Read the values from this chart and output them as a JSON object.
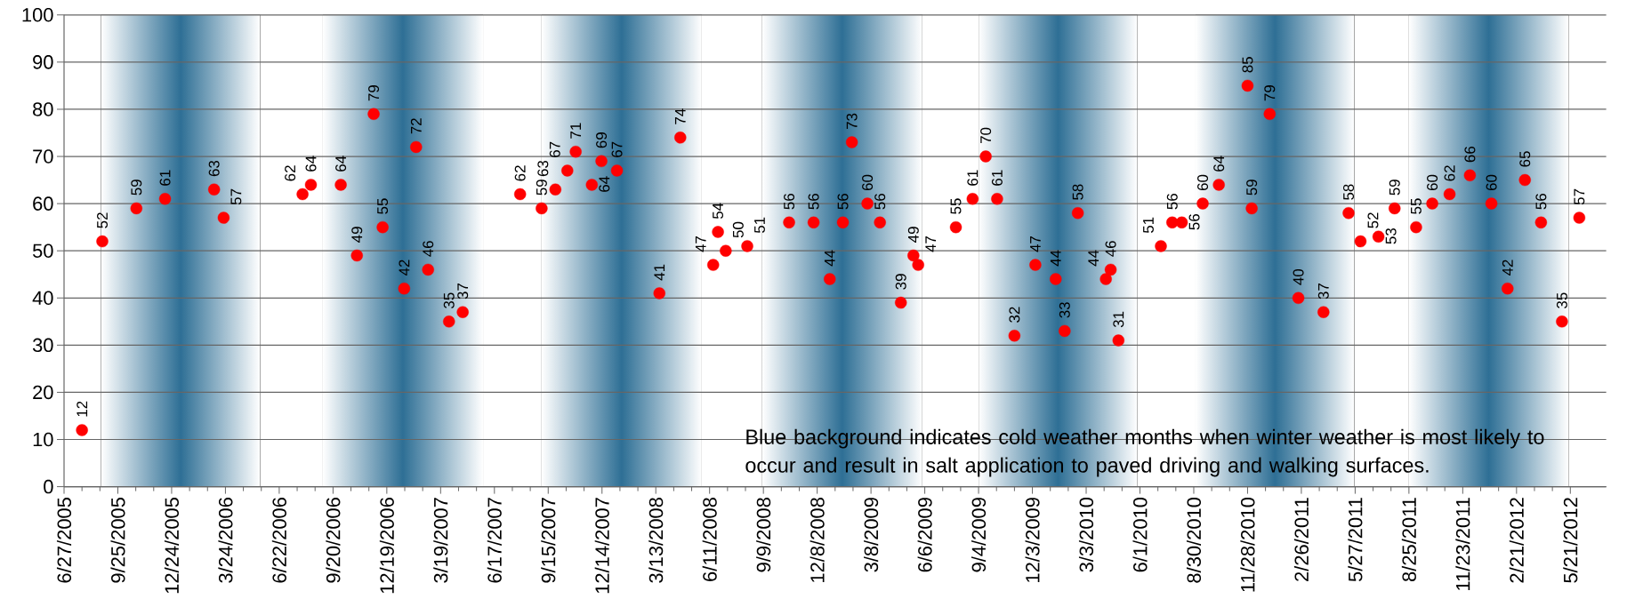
{
  "chart_data": {
    "type": "scatter",
    "x": [
      "2005-07-27",
      "2005-08-30",
      "2005-10-26",
      "2005-12-13",
      "2006-03-05",
      "2006-03-21",
      "2006-07-31",
      "2006-08-14",
      "2006-10-03",
      "2006-10-30",
      "2006-11-27",
      "2006-12-12",
      "2007-01-17",
      "2007-02-06",
      "2007-02-26",
      "2007-04-02",
      "2007-04-25",
      "2007-07-30",
      "2007-09-04",
      "2007-09-27",
      "2007-10-17",
      "2007-10-31",
      "2007-11-27",
      "2007-12-13",
      "2008-01-08",
      "2008-03-19",
      "2008-04-23",
      "2008-06-17",
      "2008-06-25",
      "2008-07-08",
      "2008-08-13",
      "2008-10-22",
      "2008-12-02",
      "2008-12-29",
      "2009-01-20",
      "2009-02-04",
      "2009-03-02",
      "2009-03-23",
      "2009-04-27",
      "2009-05-18",
      "2009-05-26",
      "2009-07-28",
      "2009-08-25",
      "2009-09-16",
      "2009-10-05",
      "2009-11-03",
      "2009-12-08",
      "2010-01-11",
      "2010-01-26",
      "2010-02-17",
      "2010-04-05",
      "2010-04-13",
      "2010-04-26",
      "2010-07-06",
      "2010-07-25",
      "2010-08-10",
      "2010-09-14",
      "2010-10-11",
      "2010-11-28",
      "2010-12-05",
      "2011-01-04",
      "2011-02-21",
      "2011-04-04",
      "2011-05-16",
      "2011-06-05",
      "2011-07-05",
      "2011-08-01",
      "2011-09-06",
      "2011-10-03",
      "2011-11-01",
      "2011-12-05",
      "2012-01-10",
      "2012-02-06",
      "2012-03-06",
      "2012-04-02",
      "2012-05-07",
      "2012-06-05"
    ],
    "values": [
      12,
      52,
      59,
      61,
      63,
      57,
      62,
      64,
      64,
      49,
      79,
      55,
      42,
      72,
      46,
      35,
      37,
      62,
      59,
      63,
      67,
      71,
      64,
      69,
      67,
      41,
      74,
      47,
      54,
      50,
      51,
      56,
      56,
      44,
      56,
      73,
      60,
      56,
      39,
      49,
      47,
      55,
      61,
      70,
      61,
      32,
      47,
      44,
      33,
      58,
      44,
      46,
      31,
      51,
      56,
      56,
      60,
      64,
      85,
      59,
      79,
      40,
      37,
      58,
      52,
      53,
      59,
      55,
      60,
      62,
      66,
      60,
      42,
      65,
      56,
      35,
      57
    ],
    "color": "#ff0000",
    "marker": "circle",
    "data_labels": true,
    "grid": "y",
    "xlim": [
      "2005-06-27",
      "2012-07-20"
    ],
    "xticks": [
      {
        "value": "2005-06-27",
        "label": "6/27/2005"
      },
      {
        "value": "2005-09-25",
        "label": "9/25/2005"
      },
      {
        "value": "2005-12-24",
        "label": "12/24/2005"
      },
      {
        "value": "2006-03-24",
        "label": "3/24/2006"
      },
      {
        "value": "2006-06-22",
        "label": "6/22/2006"
      },
      {
        "value": "2006-09-20",
        "label": "9/20/2006"
      },
      {
        "value": "2006-12-19",
        "label": "12/19/2006"
      },
      {
        "value": "2007-03-19",
        "label": "3/19/2007"
      },
      {
        "value": "2007-06-17",
        "label": "6/17/2007"
      },
      {
        "value": "2007-09-15",
        "label": "9/15/2007"
      },
      {
        "value": "2007-12-14",
        "label": "12/14/2007"
      },
      {
        "value": "2008-03-13",
        "label": "3/13/2008"
      },
      {
        "value": "2008-06-11",
        "label": "6/11/2008"
      },
      {
        "value": "2008-09-09",
        "label": "9/9/2008"
      },
      {
        "value": "2008-12-08",
        "label": "12/8/2008"
      },
      {
        "value": "2009-03-08",
        "label": "3/8/2009"
      },
      {
        "value": "2009-06-06",
        "label": "6/6/2009"
      },
      {
        "value": "2009-09-04",
        "label": "9/4/2009"
      },
      {
        "value": "2009-12-03",
        "label": "12/3/2009"
      },
      {
        "value": "2010-03-03",
        "label": "3/3/2010"
      },
      {
        "value": "2010-06-01",
        "label": "6/1/2010"
      },
      {
        "value": "2010-08-30",
        "label": "8/30/2010"
      },
      {
        "value": "2010-11-28",
        "label": "11/28/2010"
      },
      {
        "value": "2011-02-26",
        "label": "2/26/2011"
      },
      {
        "value": "2011-05-27",
        "label": "5/27/2011"
      },
      {
        "value": "2011-08-25",
        "label": "8/25/2011"
      },
      {
        "value": "2011-11-23",
        "label": "11/23/2011"
      },
      {
        "value": "2012-02-21",
        "label": "2/21/2012"
      },
      {
        "value": "2012-05-21",
        "label": "5/21/2012"
      }
    ],
    "ylim": [
      0,
      100
    ],
    "yticks": [
      0,
      10,
      20,
      30,
      40,
      50,
      60,
      70,
      80,
      90,
      100
    ],
    "bands": [
      {
        "axis": "x",
        "from": "2005-08-28",
        "to": "2006-05-21",
        "color": "#2e6f95"
      },
      {
        "axis": "x",
        "from": "2006-09-03",
        "to": "2007-05-29",
        "color": "#2e6f95"
      },
      {
        "axis": "x",
        "from": "2007-09-04",
        "to": "2008-05-29",
        "color": "#2e6f95"
      },
      {
        "axis": "x",
        "from": "2008-09-07",
        "to": "2009-06-02",
        "color": "#2e6f95"
      },
      {
        "axis": "x",
        "from": "2009-09-04",
        "to": "2010-05-28",
        "color": "#2e6f95"
      },
      {
        "axis": "x",
        "from": "2010-09-02",
        "to": "2011-05-26",
        "color": "#2e6f95"
      },
      {
        "axis": "x",
        "from": "2011-08-25",
        "to": "2012-05-18",
        "color": "#2e6f95"
      }
    ],
    "annotations": [
      "Blue background indicates cold weather months when winter weather is most likely to occur and result in salt application to paved driving and walking surfaces."
    ]
  }
}
